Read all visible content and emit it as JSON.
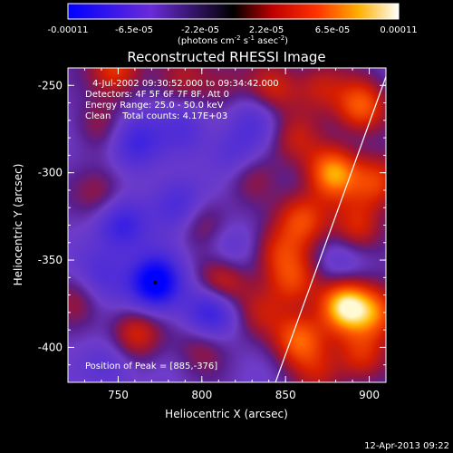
{
  "chart_data": {
    "type": "heatmap",
    "title": "Reconstructed RHESSI Image",
    "xlabel": "Heliocentric X (arcsec)",
    "ylabel": "Heliocentric Y (arcsec)",
    "xlim": [
      720,
      910
    ],
    "ylim": [
      -420,
      -240
    ],
    "xticks": [
      750,
      800,
      850,
      900
    ],
    "yticks": [
      -250,
      -300,
      -350,
      -400
    ],
    "colorbar": {
      "range": [
        -0.00011,
        0.00011
      ],
      "ticks": [
        "-0.00011",
        "-6.5e-05",
        "-2.2e-05",
        "2.2e-05",
        "6.5e-05",
        "0.00011"
      ],
      "label": "(photons cm",
      "label_sup1": "-2",
      "label_mid": " s",
      "label_sup2": "-1",
      "label_end": " asec",
      "label_sup3": "-2",
      "label_close": ")"
    },
    "annotations": [
      "4-Jul-2002 09:30:52.000 to 09:34:42.000",
      "Detectors: 4F 5F 6F 7F 8F, Att 0",
      "Energy Range: 25.0 - 50.0 keV",
      "Clean    Total counts: 4.17E+03"
    ],
    "peak_label": "Position of Peak = [885,-376]",
    "peak_position": [
      885,
      -376
    ],
    "limb_line": [
      [
        844,
        -420
      ],
      [
        910,
        -245
      ]
    ],
    "marker": [
      772,
      -363
    ],
    "sources": [
      {
        "x": 748,
        "y": -240,
        "v": 0.6
      },
      {
        "x": 790,
        "y": -245,
        "v": 0.3
      },
      {
        "x": 812,
        "y": -248,
        "v": 0.25
      },
      {
        "x": 842,
        "y": -252,
        "v": 0.45
      },
      {
        "x": 870,
        "y": -250,
        "v": 0.4
      },
      {
        "x": 895,
        "y": -262,
        "v": 0.7
      },
      {
        "x": 738,
        "y": -272,
        "v": 0.25
      },
      {
        "x": 855,
        "y": -280,
        "v": 0.35
      },
      {
        "x": 878,
        "y": -300,
        "v": 0.85
      },
      {
        "x": 905,
        "y": -305,
        "v": 0.55
      },
      {
        "x": 828,
        "y": -300,
        "v": 0.3
      },
      {
        "x": 740,
        "y": -312,
        "v": 0.3
      },
      {
        "x": 860,
        "y": -326,
        "v": 0.6
      },
      {
        "x": 892,
        "y": -332,
        "v": 0.5
      },
      {
        "x": 800,
        "y": -328,
        "v": 0.3
      },
      {
        "x": 845,
        "y": -345,
        "v": 0.45
      },
      {
        "x": 812,
        "y": -362,
        "v": 0.55
      },
      {
        "x": 855,
        "y": -362,
        "v": 0.5
      },
      {
        "x": 885,
        "y": -376,
        "v": 1.0
      },
      {
        "x": 905,
        "y": -380,
        "v": 0.6
      },
      {
        "x": 835,
        "y": -380,
        "v": 0.3
      },
      {
        "x": 760,
        "y": -392,
        "v": 0.5
      },
      {
        "x": 800,
        "y": -398,
        "v": 0.3
      },
      {
        "x": 858,
        "y": -395,
        "v": 0.7
      },
      {
        "x": 895,
        "y": -405,
        "v": 0.5
      },
      {
        "x": 870,
        "y": -415,
        "v": 0.3
      },
      {
        "x": 725,
        "y": -372,
        "v": 0.25
      },
      {
        "x": 772,
        "y": -363,
        "v": -1.0
      },
      {
        "x": 752,
        "y": -330,
        "v": -0.55
      },
      {
        "x": 785,
        "y": -318,
        "v": -0.45
      },
      {
        "x": 815,
        "y": -345,
        "v": -0.3
      },
      {
        "x": 805,
        "y": -380,
        "v": -0.6
      },
      {
        "x": 740,
        "y": -358,
        "v": -0.35
      },
      {
        "x": 760,
        "y": -282,
        "v": -0.5
      },
      {
        "x": 790,
        "y": -275,
        "v": -0.3
      },
      {
        "x": 820,
        "y": -290,
        "v": -0.35
      },
      {
        "x": 745,
        "y": -410,
        "v": -0.3
      },
      {
        "x": 832,
        "y": -268,
        "v": -0.3
      },
      {
        "x": 882,
        "y": -350,
        "v": -0.25
      }
    ]
  },
  "footer": {
    "timestamp": "12-Apr-2013 09:22"
  }
}
